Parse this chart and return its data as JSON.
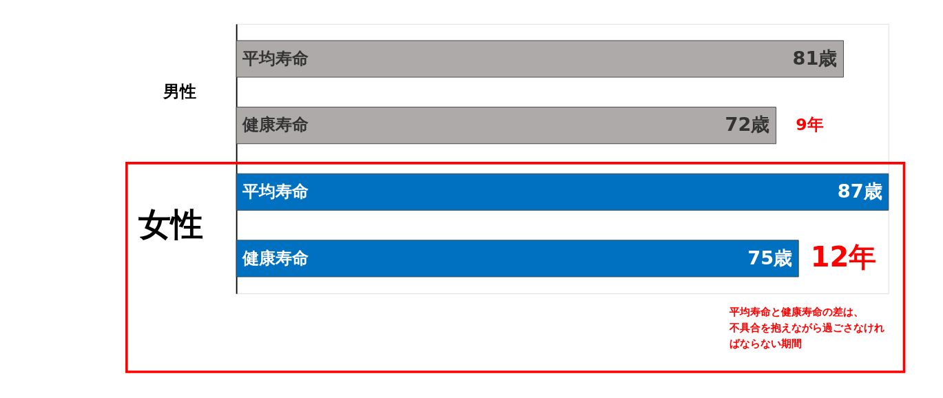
{
  "chart_data": {
    "type": "bar",
    "orientation": "horizontal",
    "categories": [
      "平均寿命",
      "健康寿命",
      "平均寿命",
      "健康寿命"
    ],
    "values": [
      81,
      72,
      87,
      75
    ],
    "colors": [
      "#aeaaa9",
      "#aeaaa9",
      "#0070c0",
      "#0070c0"
    ],
    "value_labels": [
      "81歳",
      "72歳",
      "87歳",
      "75歳"
    ],
    "annotations": [
      "男性",
      "女性",
      "9年",
      "12年",
      "平均寿命と健康寿命の差は、",
      "不具合を抱えながら過ごさなけれ",
      "ばならない期間"
    ]
  }
}
